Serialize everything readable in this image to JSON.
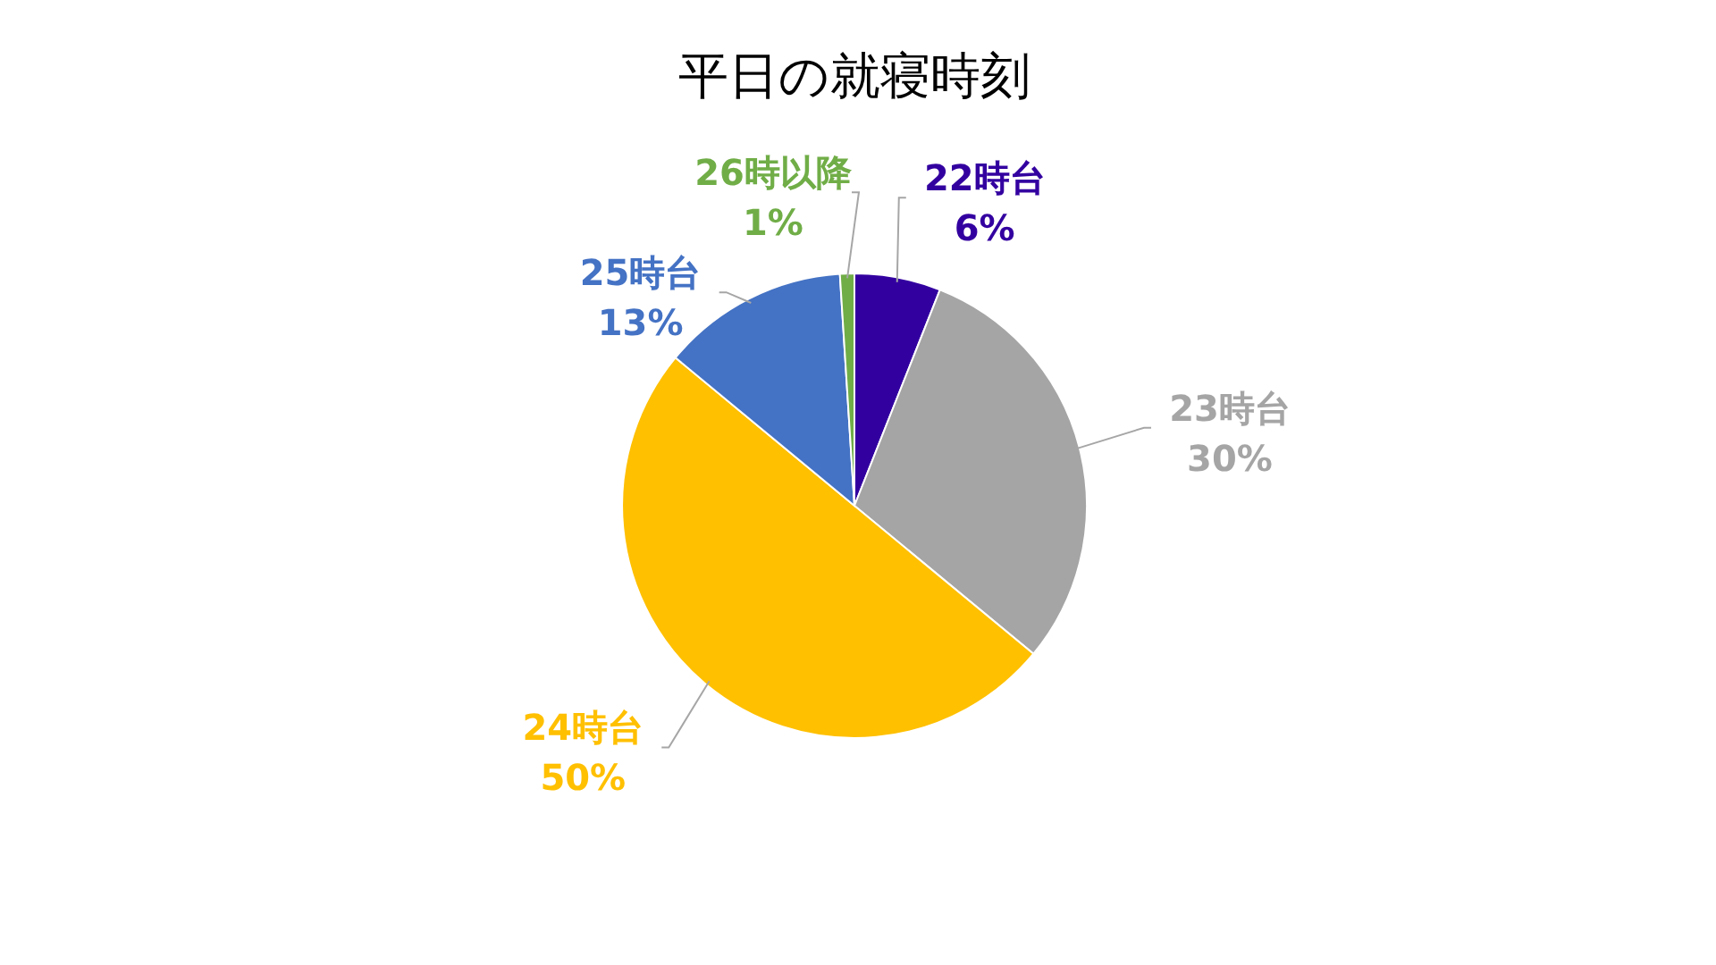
{
  "chart_data": {
    "type": "pie",
    "title": "平日の就寝時刻",
    "categories": [
      "22時台",
      "23時台",
      "24時台",
      "25時台",
      "26時以降"
    ],
    "values": [
      6,
      30,
      50,
      13,
      1
    ],
    "value_labels": [
      "6%",
      "30%",
      "50%",
      "13%",
      "1%"
    ],
    "colors": [
      "#3300a0",
      "#a5a5a5",
      "#ffc000",
      "#4472c4",
      "#70ad47"
    ]
  }
}
